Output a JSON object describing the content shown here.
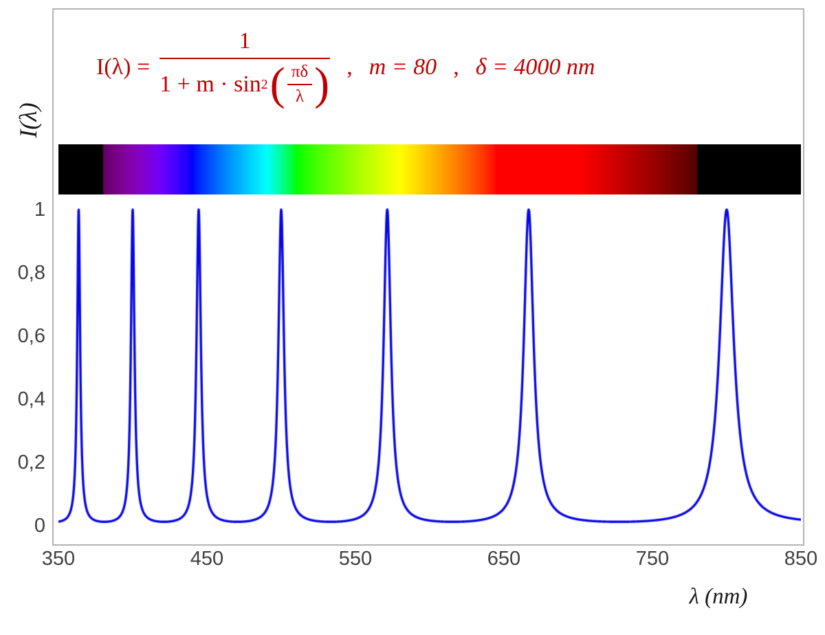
{
  "formula": {
    "lhs": "I(λ) =",
    "numerator": "1",
    "den_prefix": "1 + m · sin",
    "den_sup": "2",
    "inner_numerator": "πδ",
    "inner_denominator": "λ",
    "sep1": ",",
    "m_equation": "m = 80",
    "sep2": ",",
    "delta_equation": "δ = 4000 nm",
    "color": "#C00000"
  },
  "axes": {
    "y_axis_label": "I(λ)",
    "x_axis_label": "λ  (nm)",
    "y_ticks": [
      "1",
      "0,8",
      "0,6",
      "0,4",
      "0,2",
      "0"
    ],
    "x_ticks": [
      "350",
      "450",
      "550",
      "650",
      "750",
      "850"
    ]
  },
  "chart_data": {
    "type": "line",
    "title": "Fabry-Pérot / Airy transmission function over the visible spectrum",
    "function": "I(lambda) = 1 / (1 + m * sin^2(pi * delta / lambda))",
    "params": {
      "m": 80,
      "delta_nm": 4000
    },
    "x_range_nm": [
      350,
      850
    ],
    "ylim": [
      0,
      1
    ],
    "x_tick_values_nm": [
      350,
      450,
      550,
      650,
      750,
      850
    ],
    "y_tick_values": [
      0,
      0.2,
      0.4,
      0.6,
      0.8,
      1
    ],
    "peak_wavelengths_nm": [
      363.64,
      400.0,
      444.44,
      500.0,
      571.43,
      666.67,
      800.0
    ],
    "peak_intensity": 1,
    "baseline_intensity": 0.0123,
    "line_color": "#0707e8",
    "grid": false,
    "legend": false,
    "spectrum_bar": {
      "visible_range_nm": [
        380,
        780
      ],
      "mapped_range_nm": [
        350,
        850
      ]
    }
  },
  "frame": {
    "border_color": "#b3b3b3"
  }
}
